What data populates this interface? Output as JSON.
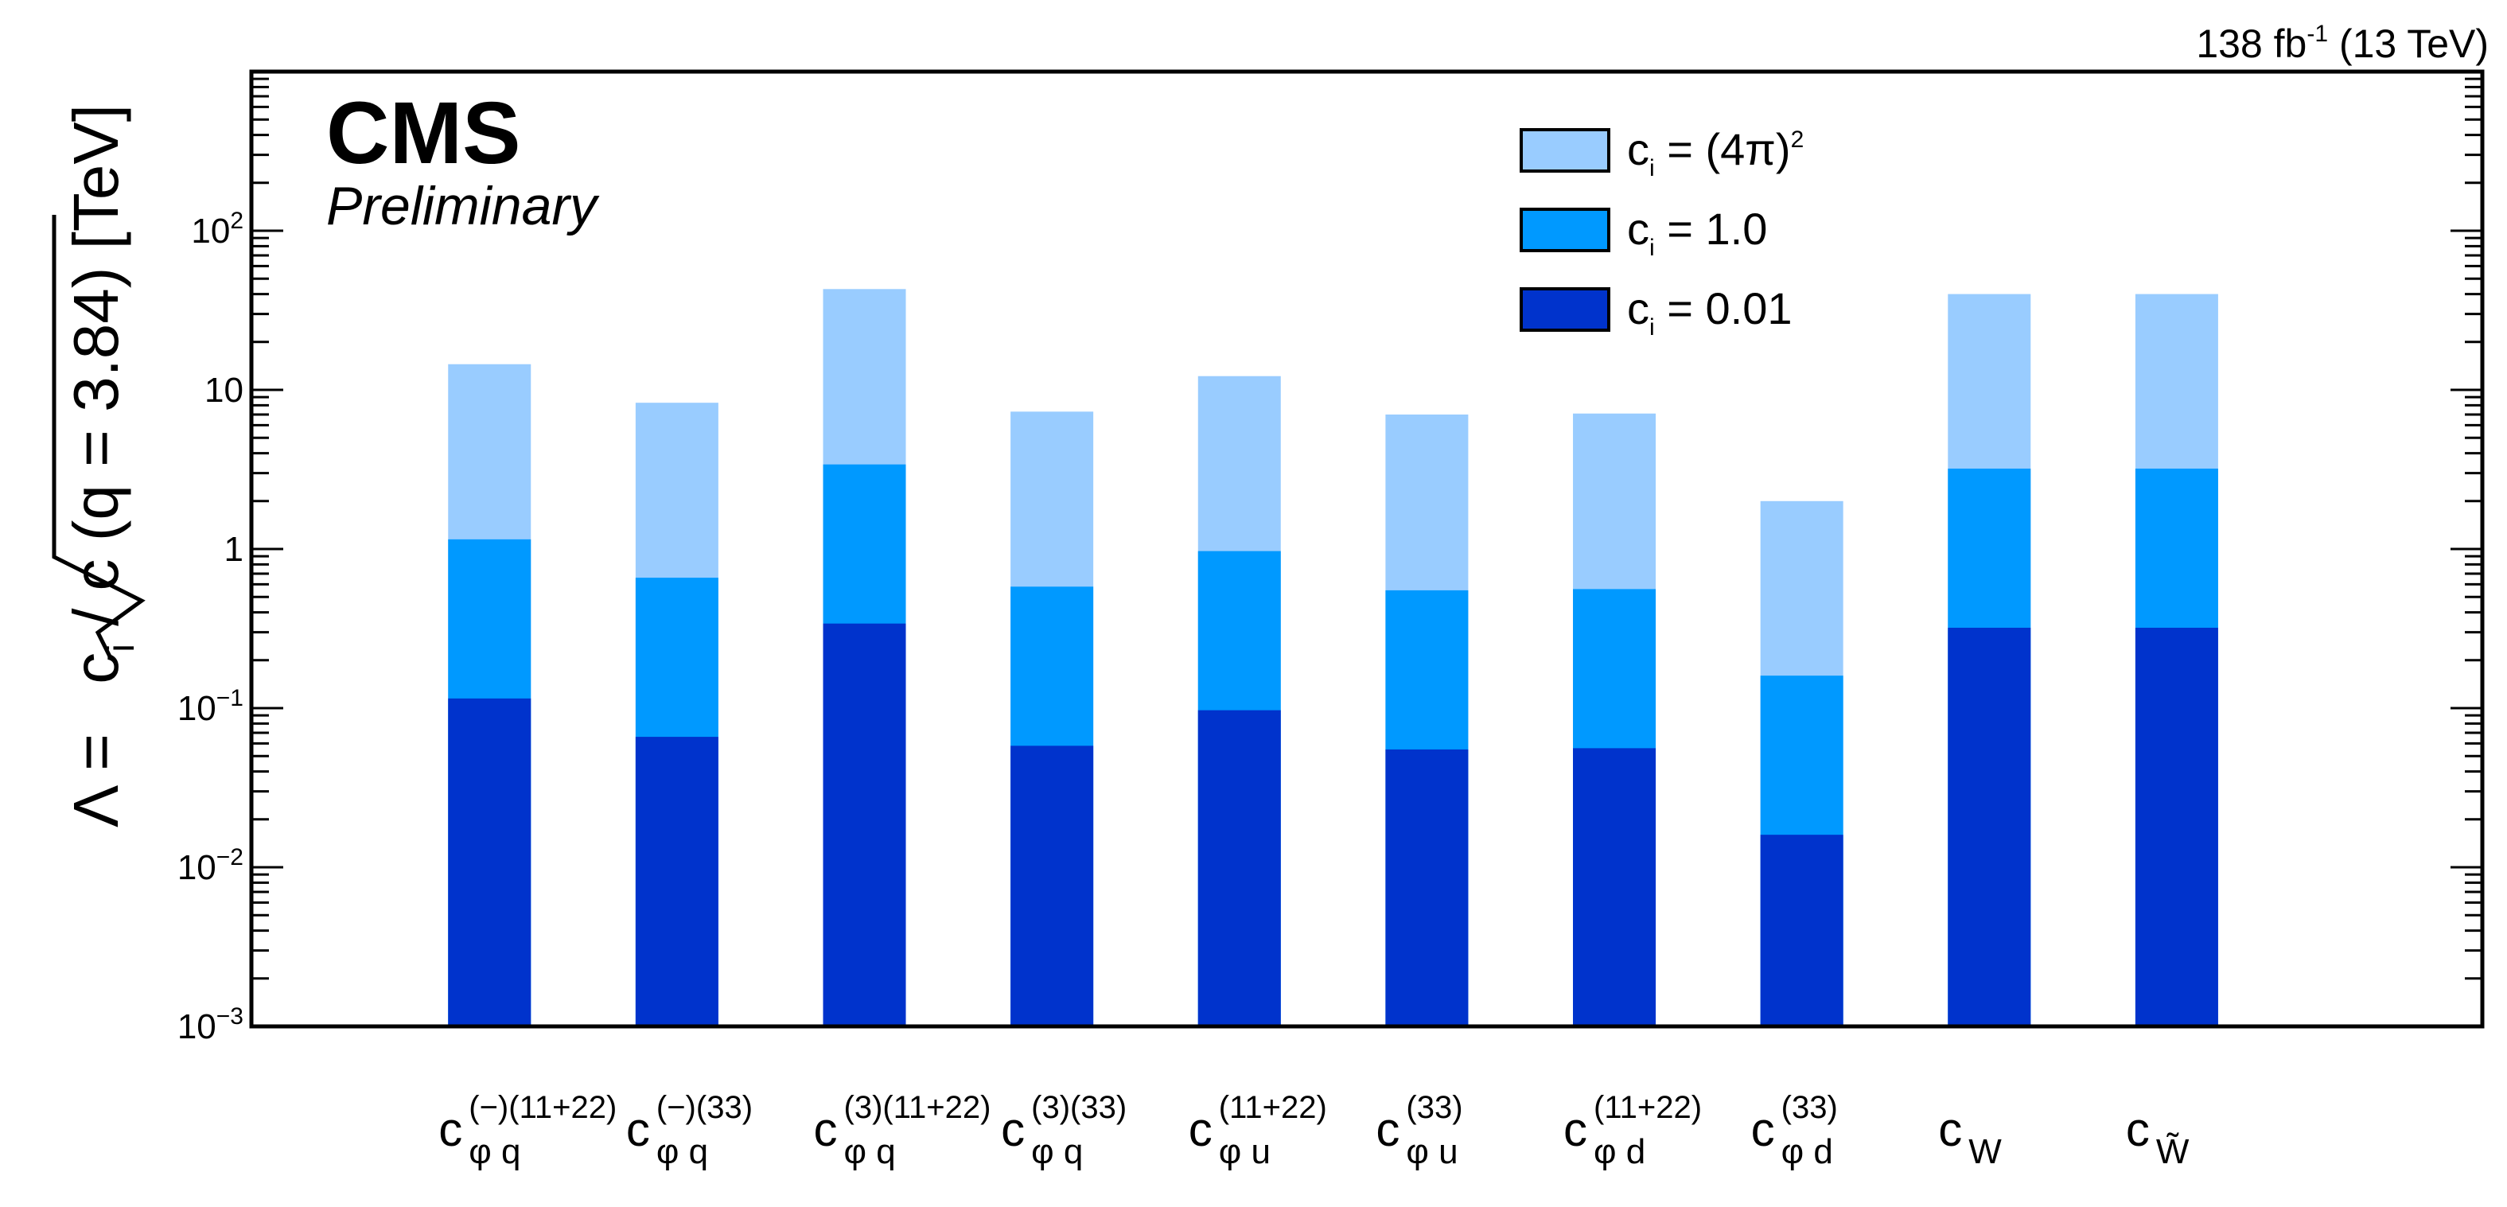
{
  "chart_data": {
    "type": "bar",
    "stacked_overlay": true,
    "lumi_label": "138 fb-1 (13 TeV)",
    "lumi": {
      "main": "138 fb",
      "sup": "-1",
      "rest": " (13 TeV)"
    },
    "cms_label": "CMS",
    "preliminary_label": "Preliminary",
    "ylabel": "Λ = √(c_i / c (q = 3.84)) [TeV]",
    "ylabel_parts": {
      "prefix": "Λ = ",
      "c": "c",
      "i": "i",
      "rest": " / c (q = 3.84) [TeV]"
    },
    "yscale": "log",
    "ylim": [
      0.001,
      1000
    ],
    "ytick_labels": [
      {
        "value": 0.001,
        "base": "10",
        "exp": "−3"
      },
      {
        "value": 0.01,
        "base": "10",
        "exp": "−2"
      },
      {
        "value": 0.1,
        "base": "10",
        "exp": "−1"
      },
      {
        "value": 1,
        "base": "1",
        "exp": ""
      },
      {
        "value": 10,
        "base": "10",
        "exp": ""
      },
      {
        "value": 100,
        "base": "10",
        "exp": "2"
      }
    ],
    "categories": [
      "c_φq^(−)(11+22)",
      "c_φq^(−)(33)",
      "c_φq^(3)(11+22)",
      "c_φq^(3)(33)",
      "c_φu^(11+22)",
      "c_φu^(33)",
      "c_φd^(11+22)",
      "c_φd^(33)",
      "c_W",
      "c_W̃"
    ],
    "category_labels": [
      {
        "base": "c",
        "sub": "φ q",
        "sup": "(−)(11+22)"
      },
      {
        "base": "c",
        "sub": "φ q",
        "sup": "(−)(33)"
      },
      {
        "base": "c",
        "sub": "φ q",
        "sup": "(3)(11+22)"
      },
      {
        "base": "c",
        "sub": "φ q",
        "sup": "(3)(33)"
      },
      {
        "base": "c",
        "sub": "φ u",
        "sup": "(11+22)"
      },
      {
        "base": "c",
        "sub": "φ u",
        "sup": "(33)"
      },
      {
        "base": "c",
        "sub": "φ d",
        "sup": "(11+22)"
      },
      {
        "base": "c",
        "sub": "φ d",
        "sup": "(33)"
      },
      {
        "base": "c",
        "sub": "W",
        "sup": ""
      },
      {
        "base": "c",
        "sub": "W̃",
        "sup": ""
      }
    ],
    "series": [
      {
        "name": "c_i = (4π)^2",
        "color": "#99ccff",
        "values": [
          14.5,
          8.3,
          43,
          7.3,
          12.2,
          7.0,
          7.1,
          2.0,
          40,
          40
        ]
      },
      {
        "name": "c_i = 1.0",
        "color": "#0099ff",
        "values": [
          1.15,
          0.66,
          3.4,
          0.58,
          0.97,
          0.55,
          0.56,
          0.16,
          3.2,
          3.2
        ]
      },
      {
        "name": "c_i = 0.01",
        "color": "#0033cc",
        "values": [
          0.115,
          0.066,
          0.34,
          0.058,
          0.097,
          0.055,
          0.056,
          0.016,
          0.32,
          0.32
        ]
      }
    ],
    "legend": {
      "placement": "top-center",
      "entries": [
        {
          "label_base": "c",
          "label_sub": "i",
          "label_rest": " = (4π)",
          "label_sup": "2",
          "color": "#99ccff"
        },
        {
          "label_base": "c",
          "label_sub": "i",
          "label_rest": " = 1.0",
          "label_sup": "",
          "color": "#0099ff"
        },
        {
          "label_base": "c",
          "label_sub": "i",
          "label_rest": " = 0.01",
          "label_sup": "",
          "color": "#0033cc"
        }
      ]
    },
    "grid": false
  }
}
